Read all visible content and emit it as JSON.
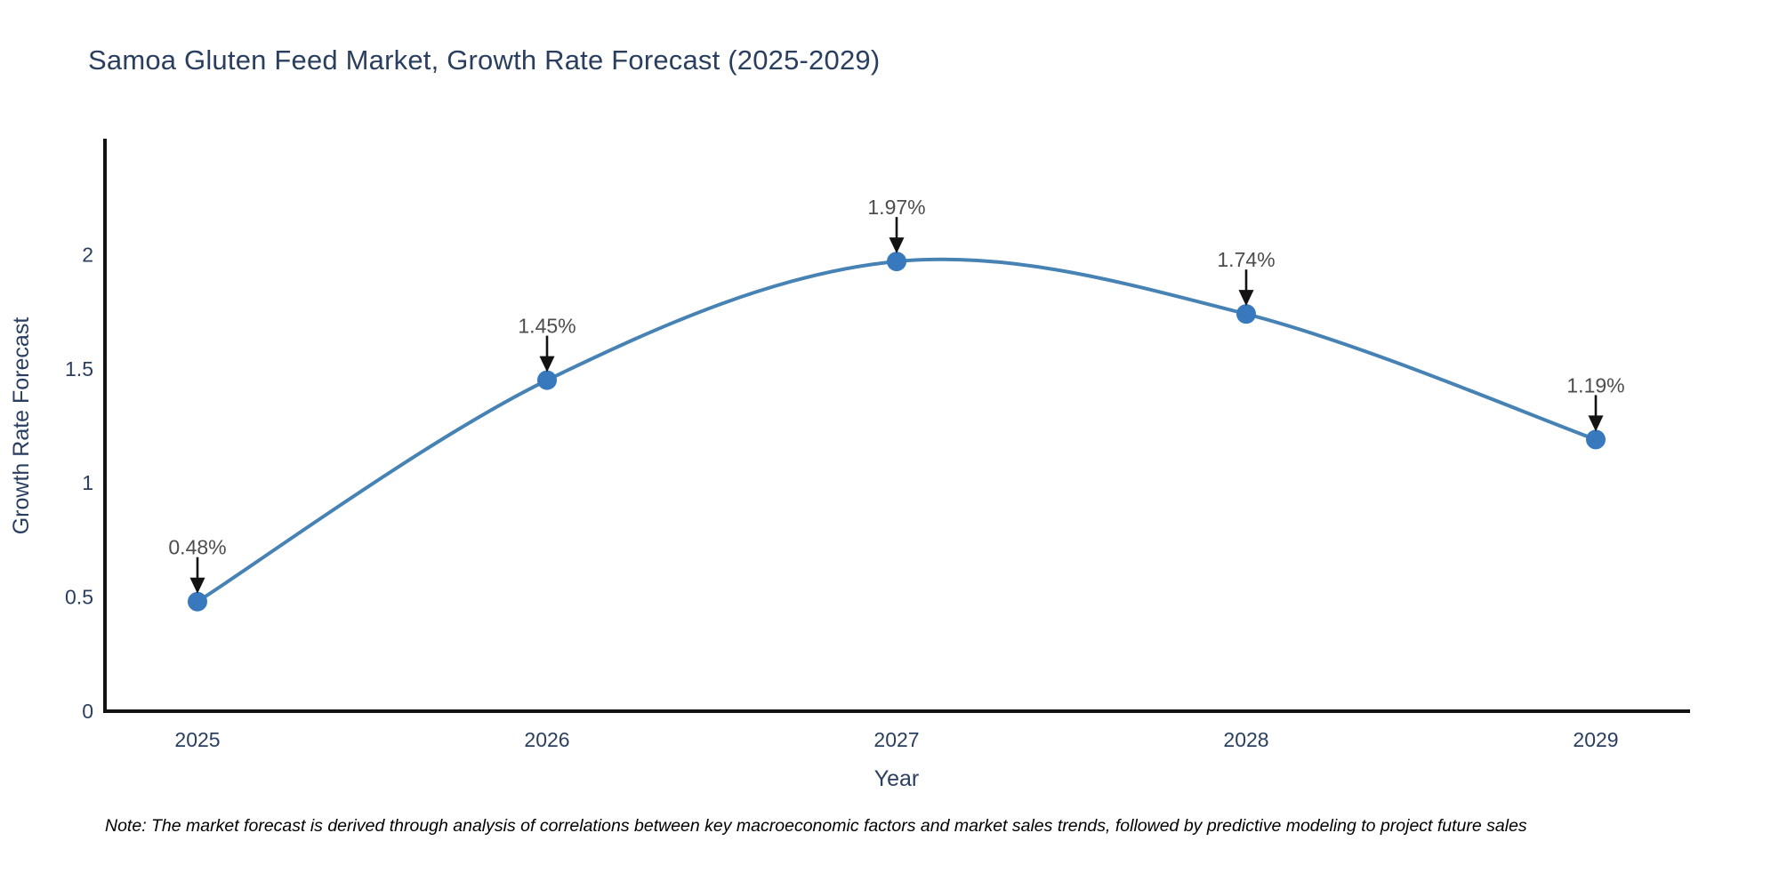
{
  "note": "Note: The market forecast is derived through analysis of correlations between key macroeconomic factors and market sales trends, followed by predictive modeling to project future sales",
  "colors": {
    "text": "#2a3f5f",
    "annotation_text": "#4d4d4d",
    "axis": "#131313",
    "arrow": "#131313",
    "line": "#4682b4",
    "marker": "#3879bd",
    "background": "#ffffff"
  },
  "chart_data": {
    "type": "line",
    "title": "Samoa Gluten Feed Market, Growth Rate Forecast (2025-2029)",
    "x": [
      2025,
      2026,
      2027,
      2028,
      2029
    ],
    "values": [
      0.48,
      1.45,
      1.97,
      1.74,
      1.19
    ],
    "point_labels": [
      "0.48%",
      "1.45%",
      "1.97%",
      "1.74%",
      "1.19%"
    ],
    "xlabel": "Year",
    "ylabel": "Growth Rate Forecast",
    "yticks": [
      0,
      0.5,
      1,
      1.5,
      2
    ],
    "ylim": [
      0,
      2.5
    ],
    "grid": false,
    "legend": "none",
    "line_shape": "spline",
    "annotation_arrows": true
  }
}
